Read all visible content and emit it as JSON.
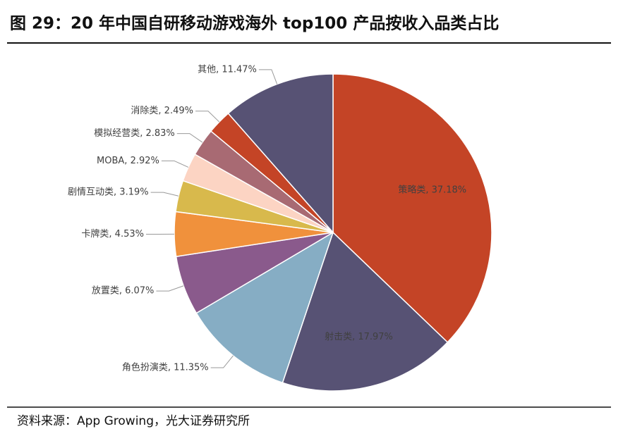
{
  "chart_data": {
    "type": "pie",
    "title": "图 29：20 年中国自研移动游戏海外 top100 产品按收入品类占比",
    "source": "资料来源：App Growing，光大证券研究所",
    "values": [
      37.18,
      17.97,
      11.35,
      6.07,
      4.53,
      3.19,
      2.92,
      2.83,
      2.49,
      11.47
    ],
    "value_labels": [
      "策略类, 37.18%",
      "射击类, 17.97%",
      "角色扮演类, 11.35%",
      "放置类, 6.07%",
      "卡牌类, 4.53%",
      "剧情互动类, 3.19%",
      "MOBA, 2.92%",
      "模拟经营类, 2.83%",
      "消除类, 2.49%",
      "其他, 11.47%"
    ],
    "colors": [
      "#c44426",
      "#575274",
      "#86adc4",
      "#8a5a8c",
      "#f0913c",
      "#d8b94c",
      "#fcd4c3",
      "#a86a73",
      "#c44426",
      "#575274"
    ]
  }
}
